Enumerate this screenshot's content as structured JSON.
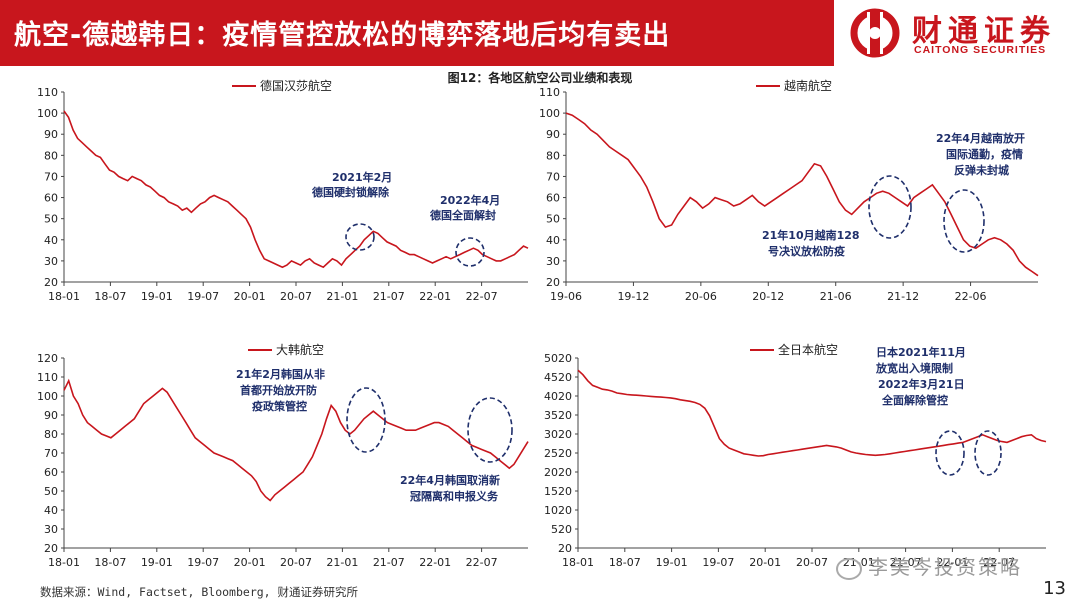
{
  "header": {
    "title": "航空-德越韩日：疫情管控放松的博弈落地后均有卖出",
    "logo_cn": "财通证券",
    "logo_en": "CAITONG SECURITIES",
    "brand_color": "#c8161d"
  },
  "figure_title": "图12：各地区航空公司业绩和表现",
  "footer": {
    "source": "数据来源：Wind, Factset, Bloomberg, 财通证券研究所",
    "page": "13",
    "watermark": "李美岑投资策略"
  },
  "chart_data": [
    {
      "type": "line",
      "legend": "德国汉莎航空",
      "series_color": "#c8161d",
      "xticks": [
        "18-01",
        "18-07",
        "19-01",
        "19-07",
        "20-01",
        "20-07",
        "21-01",
        "21-07",
        "22-01",
        "22-07"
      ],
      "ylim": [
        20,
        110
      ],
      "yticks": [
        20,
        30,
        40,
        50,
        60,
        70,
        80,
        90,
        100,
        110
      ],
      "values": [
        101,
        98,
        92,
        88,
        86,
        84,
        82,
        80,
        79,
        76,
        73,
        72,
        70,
        69,
        68,
        70,
        69,
        68,
        66,
        65,
        63,
        61,
        60,
        58,
        57,
        56,
        54,
        55,
        53,
        55,
        57,
        58,
        60,
        61,
        60,
        59,
        58,
        56,
        54,
        52,
        50,
        46,
        40,
        35,
        31,
        30,
        29,
        28,
        27,
        28,
        30,
        29,
        28,
        30,
        31,
        29,
        28,
        27,
        29,
        31,
        30,
        28,
        31,
        33,
        35,
        37,
        40,
        42,
        44,
        43,
        41,
        39,
        38,
        37,
        35,
        34,
        33,
        33,
        32,
        31,
        30,
        29,
        30,
        31,
        32,
        31,
        32,
        33,
        34,
        35,
        36,
        35,
        33,
        32,
        31,
        30,
        30,
        31,
        32,
        33,
        35,
        37,
        36
      ],
      "annotations": [
        {
          "lines": [
            "2021年2月",
            "德国硬封锁解除"
          ]
        },
        {
          "lines": [
            "2022年4月",
            "德国全面解封"
          ]
        }
      ]
    },
    {
      "type": "line",
      "legend": "越南航空",
      "series_color": "#c8161d",
      "xticks": [
        "19-06",
        "19-12",
        "20-06",
        "20-12",
        "21-06",
        "21-12",
        "22-06"
      ],
      "ylim": [
        20,
        110
      ],
      "yticks": [
        20,
        30,
        40,
        50,
        60,
        70,
        80,
        90,
        100,
        110
      ],
      "values": [
        100,
        99,
        97,
        95,
        92,
        90,
        87,
        84,
        82,
        80,
        78,
        74,
        70,
        65,
        58,
        50,
        46,
        47,
        52,
        56,
        60,
        58,
        55,
        57,
        60,
        59,
        58,
        56,
        57,
        59,
        61,
        58,
        56,
        58,
        60,
        62,
        64,
        66,
        68,
        72,
        76,
        75,
        70,
        64,
        58,
        54,
        52,
        55,
        58,
        60,
        62,
        63,
        62,
        60,
        58,
        56,
        60,
        62,
        64,
        66,
        62,
        58,
        52,
        46,
        40,
        37,
        36,
        38,
        40,
        41,
        40,
        38,
        35,
        30,
        27,
        25,
        23
      ],
      "annotations": [
        {
          "lines": [
            "21年10月越南128",
            "号决议放松防疫"
          ]
        },
        {
          "lines": [
            "22年4月越南放开",
            "国际通勤，疫情",
            "反弹未封城"
          ]
        }
      ]
    },
    {
      "type": "line",
      "legend": "大韩航空",
      "series_color": "#c8161d",
      "xticks": [
        "18-01",
        "18-07",
        "19-01",
        "19-07",
        "20-01",
        "20-07",
        "21-01",
        "21-07",
        "22-01",
        "22-07"
      ],
      "ylim": [
        20,
        120
      ],
      "yticks": [
        20,
        30,
        40,
        50,
        60,
        70,
        80,
        90,
        100,
        110,
        120
      ],
      "values": [
        103,
        108,
        100,
        96,
        90,
        86,
        84,
        82,
        80,
        79,
        78,
        80,
        82,
        84,
        86,
        88,
        92,
        96,
        98,
        100,
        102,
        104,
        102,
        98,
        94,
        90,
        86,
        82,
        78,
        76,
        74,
        72,
        70,
        69,
        68,
        67,
        66,
        64,
        62,
        60,
        58,
        55,
        50,
        47,
        45,
        48,
        50,
        52,
        54,
        56,
        58,
        60,
        64,
        68,
        74,
        80,
        88,
        95,
        92,
        86,
        82,
        80,
        82,
        85,
        88,
        90,
        92,
        90,
        88,
        86,
        85,
        84,
        83,
        82,
        82,
        82,
        83,
        84,
        85,
        86,
        86,
        85,
        84,
        82,
        80,
        78,
        76,
        74,
        73,
        72,
        71,
        70,
        68,
        66,
        64,
        62,
        64,
        68,
        72,
        76
      ],
      "annotations": [
        {
          "lines": [
            "21年2月韩国从非",
            "首都开始放开防",
            "疫政策管控"
          ]
        },
        {
          "lines": [
            "22年4月韩国取消新",
            "冠隔离和申报义务"
          ]
        }
      ]
    },
    {
      "type": "line",
      "legend": "全日本航空",
      "series_color": "#c8161d",
      "xticks": [
        "18-01",
        "18-07",
        "19-01",
        "19-07",
        "20-01",
        "20-07",
        "21-01",
        "21-07",
        "22-01",
        "22-07"
      ],
      "ylim": [
        20,
        5020
      ],
      "yticks": [
        20,
        520,
        1020,
        1520,
        2020,
        2520,
        3020,
        3520,
        4020,
        4520,
        5020
      ],
      "values": [
        4700,
        4580,
        4420,
        4300,
        4250,
        4200,
        4180,
        4150,
        4100,
        4080,
        4060,
        4050,
        4040,
        4030,
        4020,
        4010,
        4000,
        3990,
        3980,
        3970,
        3950,
        3920,
        3900,
        3880,
        3850,
        3800,
        3700,
        3500,
        3200,
        2900,
        2750,
        2650,
        2600,
        2550,
        2500,
        2480,
        2460,
        2440,
        2450,
        2480,
        2500,
        2520,
        2540,
        2560,
        2580,
        2600,
        2620,
        2640,
        2660,
        2680,
        2700,
        2720,
        2700,
        2680,
        2650,
        2600,
        2550,
        2520,
        2500,
        2480,
        2470,
        2460,
        2470,
        2480,
        2500,
        2520,
        2540,
        2560,
        2580,
        2600,
        2620,
        2640,
        2660,
        2680,
        2700,
        2720,
        2740,
        2760,
        2780,
        2800,
        2850,
        2900,
        2950,
        3000,
        2950,
        2900,
        2850,
        2820,
        2800,
        2850,
        2900,
        2950,
        2980,
        3000,
        2900,
        2850,
        2820
      ],
      "annotations": [
        {
          "lines": [
            "日本2021年11月",
            "放宽出入境限制",
            "2022年3月21日",
            "全面解除管控"
          ]
        }
      ]
    }
  ]
}
